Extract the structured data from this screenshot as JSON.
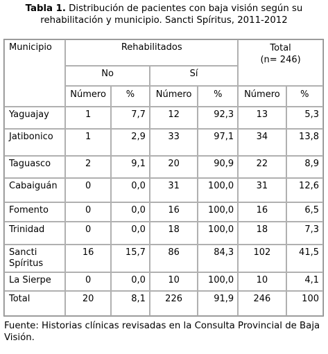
{
  "caption": {
    "label": "Tabla 1.",
    "line1": " Distribución de pacientes con baja visión según su",
    "line2": "rehabilitación y municipio. Sancti Spíritus, 2011-2012"
  },
  "headers": {
    "municipio": "Municipio",
    "rehabilitados": "Rehabilitados",
    "total_line1": "Total",
    "total_line2": "(n= 246)",
    "no": "No",
    "si": "Sí",
    "numero": "Número",
    "pct": "%"
  },
  "rows": [
    {
      "name": "Yaguajay",
      "no_n": "1",
      "no_p": "7,7",
      "si_n": "12",
      "si_p": "92,3",
      "t_n": "13",
      "t_p": "5,3"
    },
    {
      "name": "Jatibonico",
      "no_n": "1",
      "no_p": "2,9",
      "si_n": "33",
      "si_p": "97,1",
      "t_n": "34",
      "t_p": "13,8"
    },
    {
      "name": "Taguasco",
      "no_n": "2",
      "no_p": "9,1",
      "si_n": "20",
      "si_p": "90,9",
      "t_n": "22",
      "t_p": "8,9"
    },
    {
      "name": "Cabaiguán",
      "no_n": "0",
      "no_p": "0,0",
      "si_n": "31",
      "si_p": "100,0",
      "t_n": "31",
      "t_p": "12,6"
    },
    {
      "name": "Fomento",
      "no_n": "0",
      "no_p": "0,0",
      "si_n": "16",
      "si_p": "100,0",
      "t_n": "16",
      "t_p": "6,5"
    },
    {
      "name": "Trinidad",
      "no_n": "0",
      "no_p": "0,0",
      "si_n": "18",
      "si_p": "100,0",
      "t_n": "18",
      "t_p": "7,3"
    },
    {
      "name": "Sancti Spíritus",
      "no_n": "16",
      "no_p": "15,7",
      "si_n": "86",
      "si_p": "84,3",
      "t_n": "102",
      "t_p": "41,5"
    },
    {
      "name": "La Sierpe",
      "no_n": "0",
      "no_p": "0,0",
      "si_n": "10",
      "si_p": "100,0",
      "t_n": "10",
      "t_p": "4,1"
    },
    {
      "name": "Total",
      "no_n": "20",
      "no_p": "8,1",
      "si_n": "226",
      "si_p": "91,9",
      "t_n": "246",
      "t_p": "100"
    }
  ],
  "source": "Fuente: Historias clínicas revisadas en la Consulta Provincial de Baja Visión."
}
